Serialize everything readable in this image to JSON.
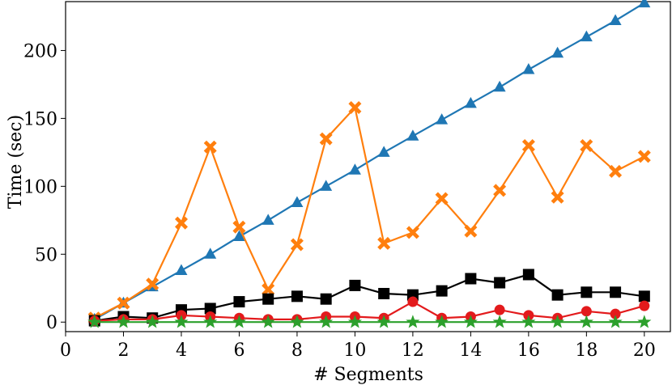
{
  "chart_data": {
    "type": "line",
    "title": "",
    "xlabel": "# Segments",
    "ylabel": "Time (sec)",
    "xlim": [
      0,
      20.9
    ],
    "ylim": [
      -7,
      236
    ],
    "xticks": [
      0,
      2,
      4,
      6,
      8,
      10,
      12,
      14,
      16,
      18,
      20
    ],
    "yticks": [
      0,
      50,
      100,
      150,
      200
    ],
    "grid": false,
    "legend": "none",
    "x": [
      1,
      2,
      3,
      4,
      5,
      6,
      7,
      8,
      9,
      10,
      11,
      12,
      13,
      14,
      15,
      16,
      17,
      18,
      19,
      20
    ],
    "series": [
      {
        "name": "blue-triangle",
        "color": "#1f77b4",
        "marker": "triangle",
        "values": [
          2,
          14,
          26,
          38,
          50,
          63,
          75,
          88,
          100,
          112,
          125,
          137,
          149,
          161,
          173,
          186,
          198,
          210,
          222,
          235
        ]
      },
      {
        "name": "orange-x",
        "color": "#ff7f0e",
        "marker": "x",
        "values": [
          3,
          14,
          28,
          73,
          129,
          70,
          24,
          57,
          135,
          158,
          58,
          66,
          91,
          67,
          97,
          130,
          92,
          130,
          111,
          122
        ]
      },
      {
        "name": "black-square",
        "color": "#000000",
        "marker": "square",
        "values": [
          1,
          4,
          3,
          9,
          10,
          15,
          17,
          19,
          17,
          27,
          21,
          20,
          23,
          32,
          29,
          35,
          20,
          22,
          22,
          19
        ]
      },
      {
        "name": "red-circle",
        "color": "#e31a1c",
        "marker": "circle",
        "values": [
          1,
          2,
          2,
          5,
          4,
          3,
          2,
          2,
          4,
          4,
          3,
          15,
          3,
          4,
          9,
          5,
          3,
          8,
          6,
          12
        ]
      },
      {
        "name": "green-star",
        "color": "#2ca02c",
        "marker": "star",
        "values": [
          0,
          0,
          0,
          0,
          0,
          0,
          0,
          0,
          0,
          0,
          0,
          0,
          0,
          0,
          0,
          0,
          0,
          0,
          0,
          0
        ]
      }
    ]
  }
}
